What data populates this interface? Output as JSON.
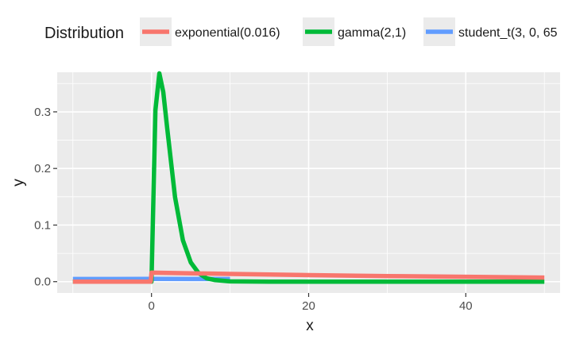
{
  "chart_data": {
    "type": "line",
    "title": "",
    "xlabel": "x",
    "ylabel": "y",
    "xlim": [
      -12,
      52
    ],
    "ylim": [
      -0.02,
      0.37
    ],
    "x_ticks": [
      0,
      20,
      40
    ],
    "x_minor_ticks": [
      -10,
      10,
      30,
      50
    ],
    "y_ticks": [
      0.0,
      0.1,
      0.2,
      0.3
    ],
    "y_tick_labels": [
      "0.0",
      "0.1",
      "0.2",
      "0.3"
    ],
    "grid": true,
    "legend": {
      "title": "Distribution",
      "position": "top"
    },
    "series": [
      {
        "name": "exponential(0.016)",
        "color": "#F8766D",
        "x": [
          -10,
          -0.1,
          0,
          5,
          10,
          20,
          30,
          40,
          50
        ],
        "y": [
          0,
          0,
          0.016,
          0.0148,
          0.0136,
          0.0116,
          0.0099,
          0.0085,
          0.0072
        ]
      },
      {
        "name": "gamma(2,1)",
        "color": "#00BA38",
        "x": [
          -10,
          -0.1,
          0,
          0.5,
          1,
          1.5,
          2,
          3,
          4,
          5,
          6,
          7,
          8,
          10,
          15,
          20,
          30,
          40,
          50
        ],
        "y": [
          0,
          0,
          0,
          0.303,
          0.368,
          0.335,
          0.271,
          0.149,
          0.073,
          0.034,
          0.015,
          0.006,
          0.003,
          0.0005,
          0,
          0,
          0,
          0,
          0
        ]
      },
      {
        "name": "student_t(3, 0, 65",
        "color": "#619CFF",
        "x": [
          -10,
          -5,
          0,
          5,
          10
        ],
        "y": [
          0.0047,
          0.0048,
          0.0049,
          0.0048,
          0.0047
        ]
      }
    ]
  }
}
